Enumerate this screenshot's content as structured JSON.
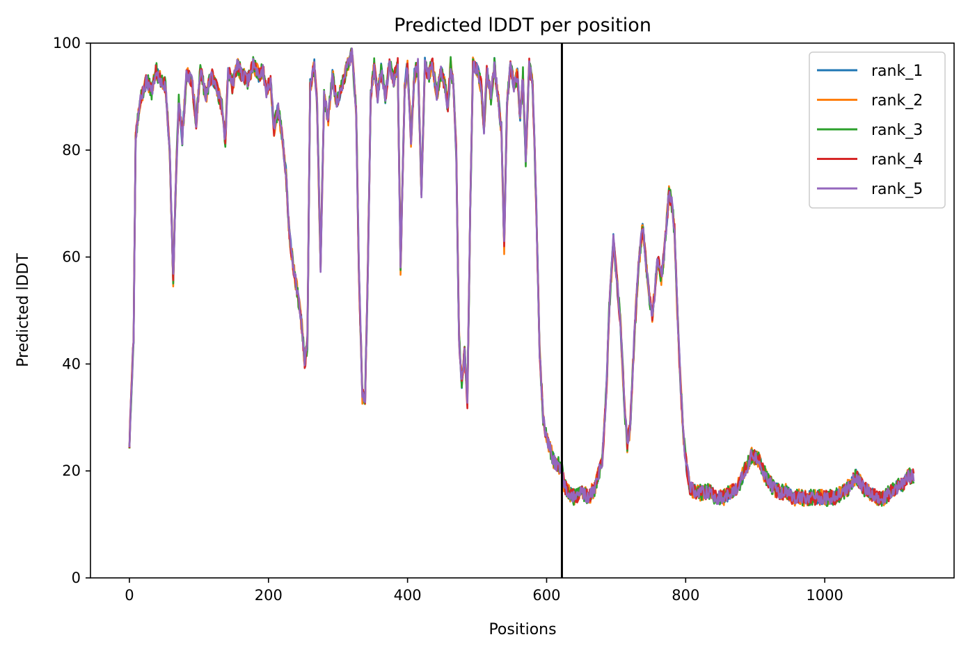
{
  "chart_data": {
    "type": "line",
    "title": "Predicted lDDT per position",
    "xlabel": "Positions",
    "ylabel": "Predicted lDDT",
    "xlim": [
      -56,
      1186
    ],
    "ylim": [
      0,
      100
    ],
    "xticks": [
      0,
      200,
      400,
      600,
      800,
      1000
    ],
    "yticks": [
      0,
      20,
      40,
      60,
      80,
      100
    ],
    "grid": false,
    "legend_position": "top-right",
    "vline": {
      "x": 622
    },
    "keypoints": [
      [
        0,
        25
      ],
      [
        3,
        36
      ],
      [
        6,
        45
      ],
      [
        9,
        82
      ],
      [
        12,
        86
      ],
      [
        17,
        90
      ],
      [
        25,
        93
      ],
      [
        32,
        91
      ],
      [
        38,
        95
      ],
      [
        45,
        93
      ],
      [
        52,
        92
      ],
      [
        58,
        80
      ],
      [
        63,
        56
      ],
      [
        67,
        75
      ],
      [
        71,
        89
      ],
      [
        76,
        82
      ],
      [
        82,
        94
      ],
      [
        90,
        93
      ],
      [
        96,
        85
      ],
      [
        102,
        95
      ],
      [
        110,
        90
      ],
      [
        118,
        94
      ],
      [
        125,
        92
      ],
      [
        133,
        88
      ],
      [
        138,
        82
      ],
      [
        142,
        95
      ],
      [
        148,
        92
      ],
      [
        155,
        96
      ],
      [
        162,
        94
      ],
      [
        170,
        93
      ],
      [
        178,
        96
      ],
      [
        186,
        94
      ],
      [
        192,
        95
      ],
      [
        197,
        91
      ],
      [
        203,
        93
      ],
      [
        208,
        84
      ],
      [
        214,
        88
      ],
      [
        220,
        82
      ],
      [
        225,
        76
      ],
      [
        230,
        64
      ],
      [
        236,
        58
      ],
      [
        242,
        53
      ],
      [
        248,
        47
      ],
      [
        252,
        40
      ],
      [
        256,
        44
      ],
      [
        260,
        92
      ],
      [
        266,
        96
      ],
      [
        270,
        88
      ],
      [
        275,
        58
      ],
      [
        280,
        90
      ],
      [
        286,
        86
      ],
      [
        292,
        94
      ],
      [
        298,
        89
      ],
      [
        306,
        92
      ],
      [
        314,
        96
      ],
      [
        320,
        98
      ],
      [
        326,
        88
      ],
      [
        330,
        58
      ],
      [
        335,
        34
      ],
      [
        339,
        34
      ],
      [
        343,
        58
      ],
      [
        347,
        90
      ],
      [
        352,
        96
      ],
      [
        357,
        90
      ],
      [
        362,
        95
      ],
      [
        368,
        90
      ],
      [
        374,
        96
      ],
      [
        380,
        93
      ],
      [
        386,
        96
      ],
      [
        390,
        58
      ],
      [
        396,
        92
      ],
      [
        400,
        96
      ],
      [
        405,
        82
      ],
      [
        410,
        94
      ],
      [
        415,
        96
      ],
      [
        420,
        72
      ],
      [
        425,
        96
      ],
      [
        430,
        94
      ],
      [
        436,
        96
      ],
      [
        442,
        90
      ],
      [
        448,
        95
      ],
      [
        454,
        92
      ],
      [
        458,
        88
      ],
      [
        462,
        96
      ],
      [
        466,
        92
      ],
      [
        470,
        80
      ],
      [
        474,
        45
      ],
      [
        478,
        36
      ],
      [
        482,
        42
      ],
      [
        486,
        33
      ],
      [
        490,
        68
      ],
      [
        494,
        96
      ],
      [
        500,
        95
      ],
      [
        506,
        92
      ],
      [
        510,
        84
      ],
      [
        514,
        95
      ],
      [
        520,
        90
      ],
      [
        525,
        96
      ],
      [
        530,
        90
      ],
      [
        535,
        84
      ],
      [
        539,
        62
      ],
      [
        543,
        88
      ],
      [
        548,
        96
      ],
      [
        553,
        92
      ],
      [
        558,
        94
      ],
      [
        562,
        86
      ],
      [
        566,
        94
      ],
      [
        570,
        78
      ],
      [
        575,
        96
      ],
      [
        580,
        92
      ],
      [
        585,
        70
      ],
      [
        590,
        42
      ],
      [
        595,
        30
      ],
      [
        600,
        26
      ],
      [
        605,
        24
      ],
      [
        610,
        22
      ],
      [
        614,
        21
      ],
      [
        618,
        21
      ],
      [
        622,
        20
      ],
      [
        626,
        17
      ],
      [
        632,
        16
      ],
      [
        640,
        15
      ],
      [
        650,
        16
      ],
      [
        660,
        15
      ],
      [
        670,
        17
      ],
      [
        680,
        22
      ],
      [
        686,
        35
      ],
      [
        690,
        50
      ],
      [
        696,
        63
      ],
      [
        700,
        57
      ],
      [
        706,
        48
      ],
      [
        712,
        32
      ],
      [
        716,
        25
      ],
      [
        720,
        28
      ],
      [
        726,
        45
      ],
      [
        732,
        58
      ],
      [
        738,
        66
      ],
      [
        742,
        60
      ],
      [
        748,
        52
      ],
      [
        752,
        49
      ],
      [
        756,
        54
      ],
      [
        760,
        60
      ],
      [
        765,
        56
      ],
      [
        770,
        62
      ],
      [
        776,
        72
      ],
      [
        780,
        70
      ],
      [
        784,
        65
      ],
      [
        788,
        50
      ],
      [
        792,
        38
      ],
      [
        796,
        28
      ],
      [
        800,
        22
      ],
      [
        806,
        17
      ],
      [
        815,
        16
      ],
      [
        825,
        16
      ],
      [
        835,
        16
      ],
      [
        845,
        15
      ],
      [
        855,
        15
      ],
      [
        865,
        16
      ],
      [
        875,
        17
      ],
      [
        885,
        20
      ],
      [
        895,
        23
      ],
      [
        905,
        22
      ],
      [
        915,
        19
      ],
      [
        925,
        17
      ],
      [
        935,
        16
      ],
      [
        945,
        16
      ],
      [
        955,
        15
      ],
      [
        965,
        15
      ],
      [
        975,
        15
      ],
      [
        985,
        15
      ],
      [
        995,
        15
      ],
      [
        1005,
        15
      ],
      [
        1015,
        15
      ],
      [
        1025,
        16
      ],
      [
        1035,
        17
      ],
      [
        1045,
        19
      ],
      [
        1055,
        17
      ],
      [
        1065,
        16
      ],
      [
        1075,
        15
      ],
      [
        1085,
        15
      ],
      [
        1095,
        16
      ],
      [
        1105,
        17
      ],
      [
        1115,
        18
      ],
      [
        1120,
        19
      ],
      [
        1128,
        19
      ]
    ],
    "series": [
      {
        "name": "rank_1",
        "color": "#1f77b4",
        "seed": 11,
        "noise": 1.3
      },
      {
        "name": "rank_2",
        "color": "#ff7f0e",
        "seed": 23,
        "noise": 1.6
      },
      {
        "name": "rank_3",
        "color": "#2ca02c",
        "seed": 37,
        "noise": 1.6
      },
      {
        "name": "rank_4",
        "color": "#d62728",
        "seed": 51,
        "noise": 1.4
      },
      {
        "name": "rank_5",
        "color": "#9467bd",
        "seed": 67,
        "noise": 1.2
      }
    ]
  }
}
